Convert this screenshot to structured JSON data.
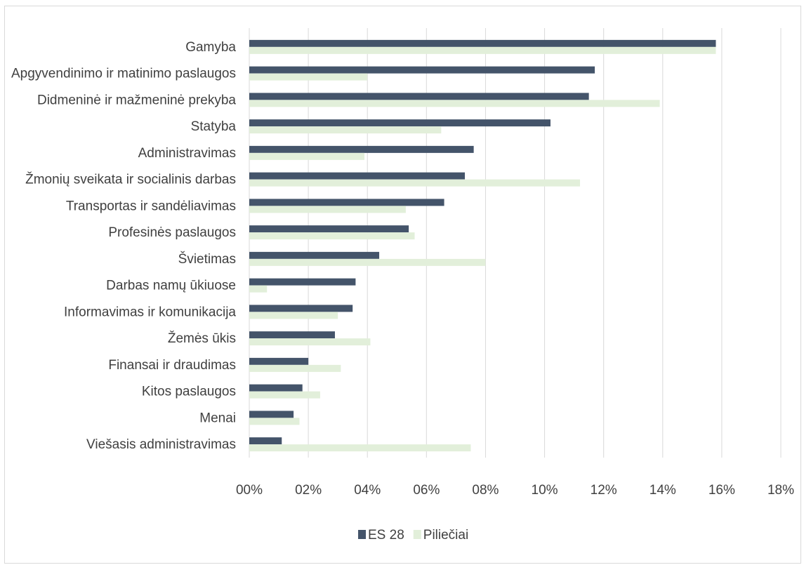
{
  "chart_data": {
    "type": "bar",
    "orientation": "horizontal",
    "categories": [
      "Gamyba",
      "Apgyvendinimo ir matinimo paslaugos",
      "Didmeninė ir mažmeninė prekyba",
      "Statyba",
      "Administravimas",
      "Žmonių sveikata ir socialinis darbas",
      "Transportas ir sandėliavimas",
      "Profesinės paslaugos",
      "Švietimas",
      "Darbas namų ūkiuose",
      "Informavimas ir komunikacija",
      "Žemės ūkis",
      "Finansai ir draudimas",
      "Kitos paslaugos",
      "Menai",
      "Viešasis administravimas"
    ],
    "series": [
      {
        "name": "ES 28",
        "color": "#44546a",
        "values": [
          15.8,
          11.7,
          11.5,
          10.2,
          7.6,
          7.3,
          6.6,
          5.4,
          4.4,
          3.6,
          3.5,
          2.9,
          2.0,
          1.8,
          1.5,
          1.1
        ]
      },
      {
        "name": "Piliečiai",
        "color": "#e2efda",
        "values": [
          15.8,
          4.0,
          13.9,
          6.5,
          3.9,
          11.2,
          5.3,
          5.6,
          8.0,
          0.6,
          3.0,
          4.1,
          3.1,
          2.4,
          1.7,
          7.5
        ]
      }
    ],
    "xlim": [
      0,
      18
    ],
    "xticks": [
      "00%",
      "02%",
      "04%",
      "06%",
      "08%",
      "10%",
      "12%",
      "14%",
      "16%",
      "18%"
    ],
    "grid": true,
    "legend_position": "bottom"
  }
}
